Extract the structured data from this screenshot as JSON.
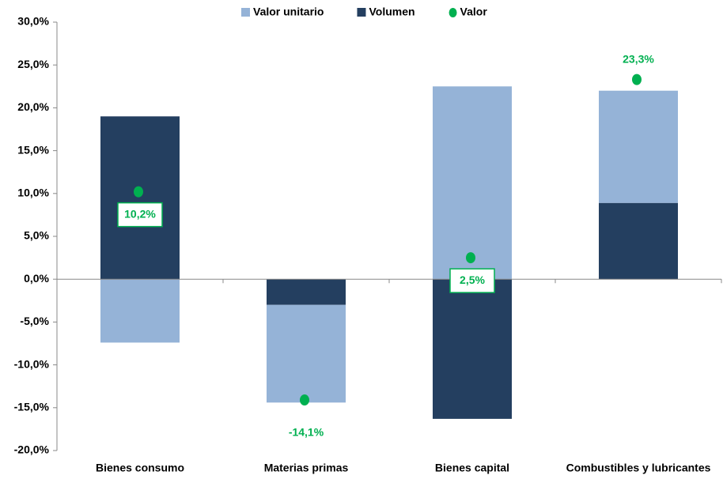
{
  "chart_data": {
    "type": "bar",
    "stacked": true,
    "categories": [
      "Bienes consumo",
      "Materias primas",
      "Bienes capital",
      "Combustibles y lubricantes"
    ],
    "series": [
      {
        "name": "Volumen",
        "color": "#243f60",
        "values": [
          19.0,
          -3.0,
          -16.3,
          8.9
        ]
      },
      {
        "name": "Valor unitario",
        "color": "#95b3d7",
        "values": [
          -7.4,
          -11.4,
          22.5,
          13.1
        ]
      },
      {
        "name": "Valor",
        "type": "scatter",
        "color": "#00b050",
        "values": [
          10.2,
          -14.1,
          2.5,
          23.3
        ],
        "value_labels": [
          "10,2%",
          "-14,1%",
          "2,5%",
          "23,3%"
        ]
      }
    ],
    "legend_order": [
      "Valor unitario",
      "Volumen",
      "Valor"
    ],
    "legend": "top",
    "ylim": [
      -20,
      30
    ],
    "yticks": [
      {
        "value": -20,
        "label": "-20,0%"
      },
      {
        "value": -15,
        "label": "-15,0%"
      },
      {
        "value": -10,
        "label": "-10,0%"
      },
      {
        "value": -5,
        "label": "-5,0%"
      },
      {
        "value": 0,
        "label": "0,0%"
      },
      {
        "value": 5,
        "label": "5,0%"
      },
      {
        "value": 10,
        "label": "10,0%"
      },
      {
        "value": 15,
        "label": "15,0%"
      },
      {
        "value": 20,
        "label": "20,0%"
      },
      {
        "value": 25,
        "label": "25,0%"
      },
      {
        "value": 30,
        "label": "30,0%"
      }
    ]
  }
}
